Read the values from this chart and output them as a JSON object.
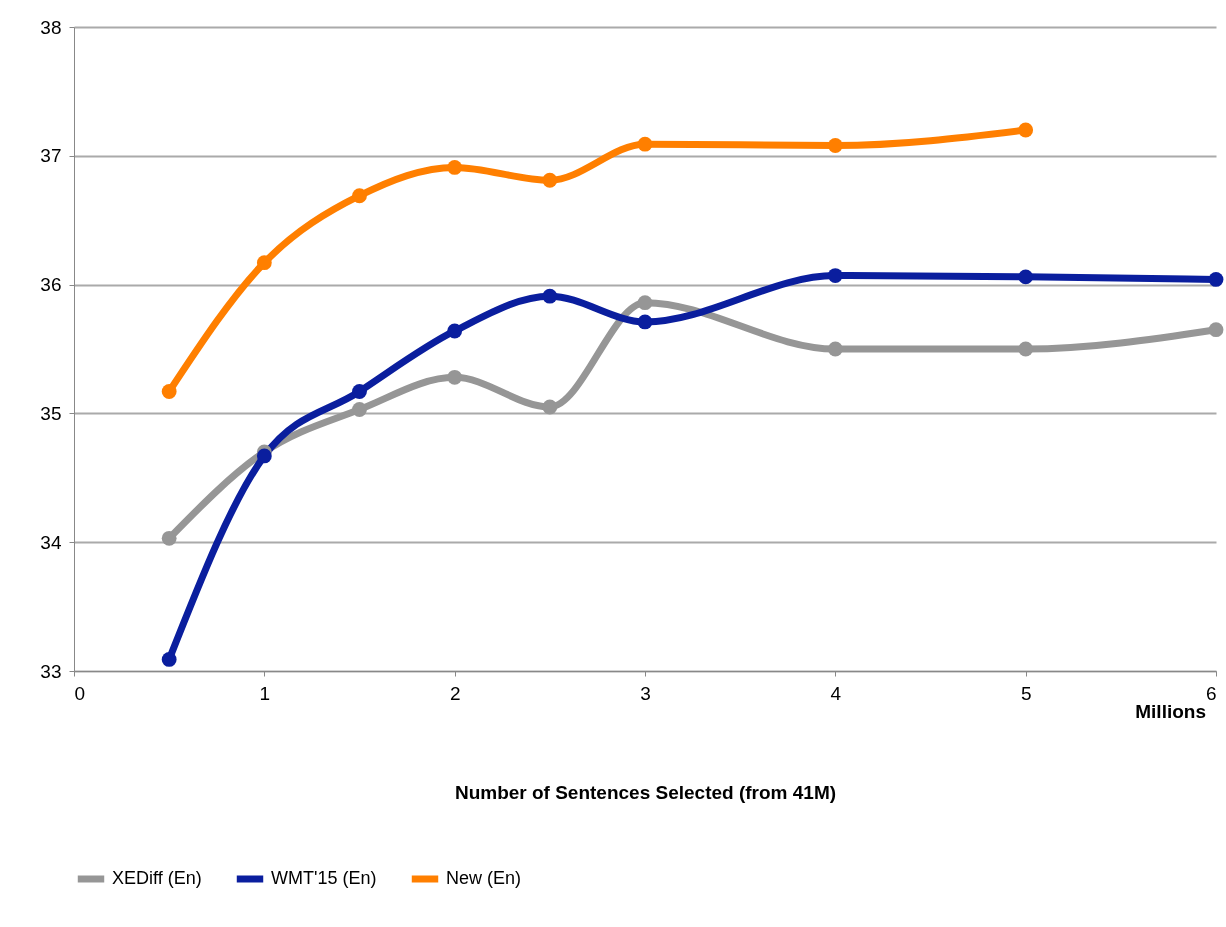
{
  "chart_data": {
    "type": "line",
    "xlabel": "Number of Sentences Selected (from 41M)",
    "annotations": [
      "Millions"
    ],
    "xlim": [
      0,
      6
    ],
    "xticks": [
      0,
      1,
      2,
      3,
      4,
      5,
      6
    ],
    "ylim": [
      33,
      38
    ],
    "yticks": [
      33,
      34,
      35,
      36,
      37,
      38
    ],
    "grid": "y",
    "legend": "bottom",
    "marker": "circle",
    "line_style": "solid",
    "series": [
      {
        "name": "XEDiff (En)",
        "color": "#969696",
        "x": [
          0.5,
          1,
          1.5,
          2,
          2.5,
          3,
          4,
          5,
          6
        ],
        "values": [
          34.03,
          34.7,
          35.03,
          35.28,
          35.05,
          35.86,
          35.5,
          35.5,
          35.65
        ]
      },
      {
        "name": "WMT'15 (En)",
        "color": "#0a1e9e",
        "x": [
          0.5,
          1,
          1.5,
          2,
          2.5,
          3,
          4,
          5,
          6
        ],
        "values": [
          33.09,
          34.67,
          35.17,
          35.64,
          35.91,
          35.71,
          36.07,
          36.06,
          36.04
        ]
      },
      {
        "name": "New (En)",
        "color": "#ff7f00",
        "x": [
          0.5,
          1,
          1.5,
          2,
          2.5,
          3,
          4,
          5
        ],
        "values": [
          35.17,
          36.17,
          36.69,
          36.91,
          36.81,
          37.09,
          37.08,
          37.2
        ]
      }
    ]
  }
}
